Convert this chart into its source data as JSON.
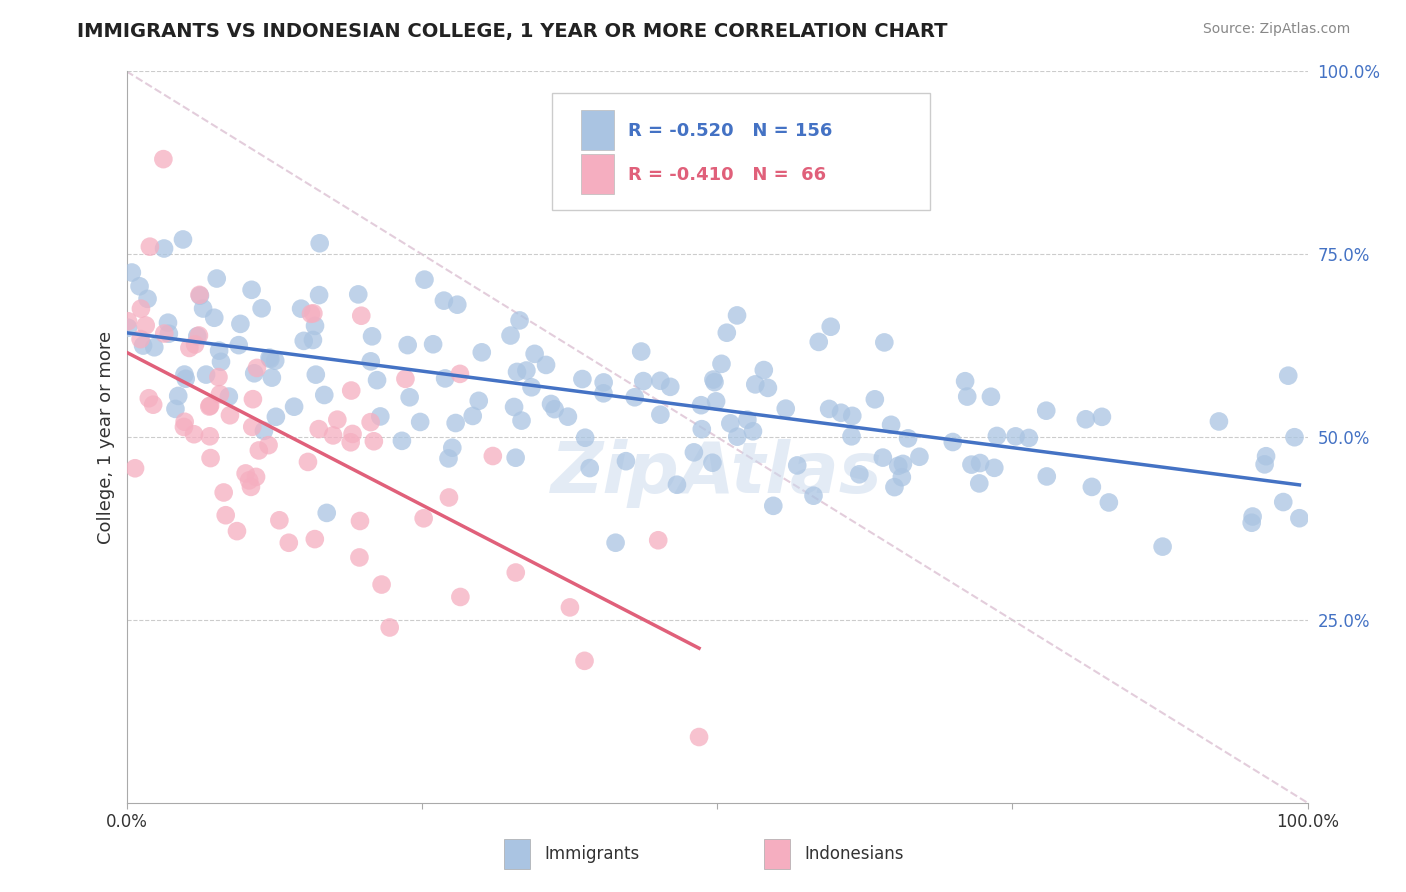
{
  "title": "IMMIGRANTS VS INDONESIAN COLLEGE, 1 YEAR OR MORE CORRELATION CHART",
  "source": "Source: ZipAtlas.com",
  "ylabel": "College, 1 year or more",
  "R_immigrants": -0.52,
  "N_immigrants": 156,
  "R_indonesians": -0.41,
  "N_indonesians": 66,
  "immigrants_color": "#aac4e2",
  "indonesians_color": "#f5aec0",
  "trend_immigrants_color": "#4472c4",
  "trend_indonesians_color": "#e0607a",
  "grid_color": "#cccccc",
  "diag_color": "#e0c8d8",
  "watermark_color": "#c8d8ec",
  "title_color": "#222222",
  "source_color": "#888888",
  "ytick_color": "#4472c4"
}
